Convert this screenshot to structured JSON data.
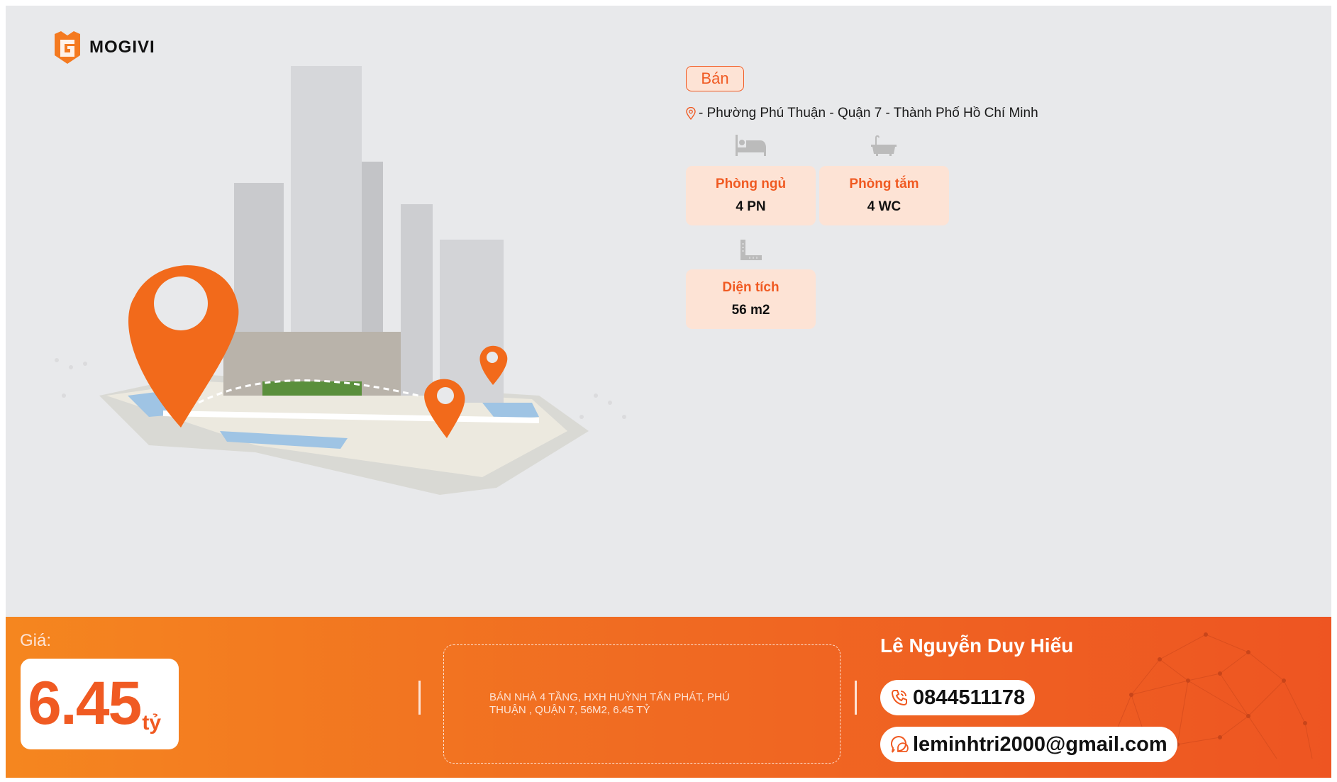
{
  "brand": {
    "name": "MOGIVI",
    "accent": "#f05a22"
  },
  "listing": {
    "type_badge": "Bán",
    "location": "- Phường Phú Thuận - Quận 7 - Thành Phố Hồ Chí Minh",
    "features": [
      {
        "icon": "bed-icon",
        "label": "Phòng ngủ",
        "value": "4 PN"
      },
      {
        "icon": "bathtub-icon",
        "label": "Phòng tắm",
        "value": "4 WC"
      },
      {
        "icon": "ruler-icon",
        "label": "Diện tích",
        "value": "56 m2"
      }
    ]
  },
  "footer": {
    "price_label": "Giá:",
    "price_value": "6.45",
    "price_unit": "tỷ",
    "description": "BÁN NHÀ 4 TẦNG, HXH HUỲNH TẤN PHÁT, PHÚ THUẬN , QUẬN 7, 56M2, 6.45 TỶ",
    "agent_name": "Lê Nguyễn Duy Hiếu",
    "phone": "0844511178",
    "email": "leminhtri2000@gmail.com"
  }
}
